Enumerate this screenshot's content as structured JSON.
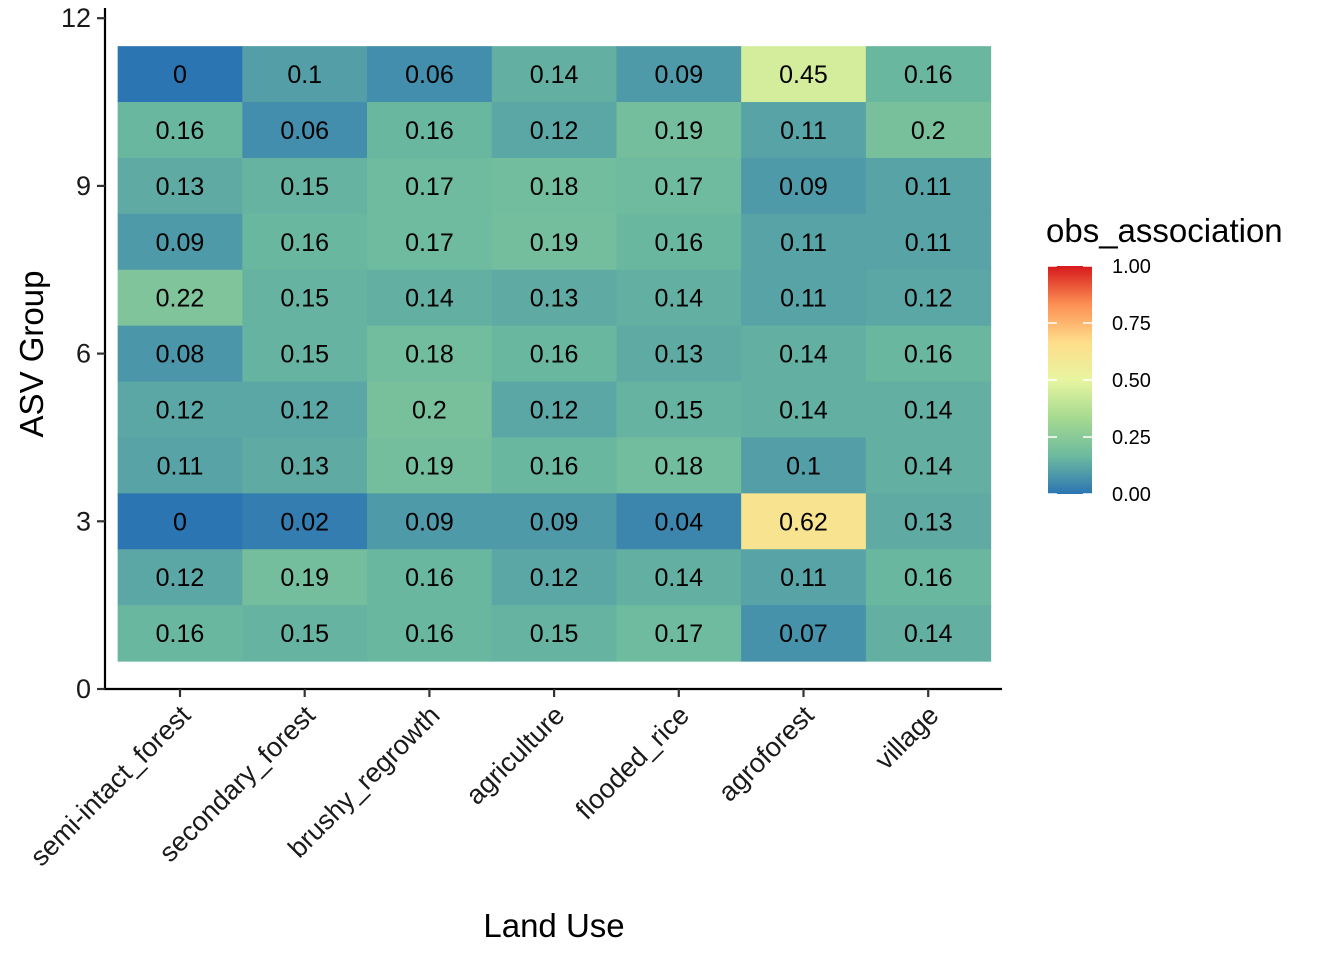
{
  "chart_data": {
    "type": "heatmap",
    "xlabel": "Land Use",
    "ylabel": "ASV Group",
    "x_categories": [
      "semi-intact_forest",
      "secondary_forest",
      "brushy_regrowth",
      "agriculture",
      "flooded_rice",
      "agroforest",
      "village"
    ],
    "y_values": [
      11,
      10,
      9,
      8,
      7,
      6,
      5,
      4,
      3,
      2,
      1
    ],
    "y_ticks": [
      0,
      3,
      6,
      9,
      12
    ],
    "y_tick_labels": [
      "0",
      "3",
      "6",
      "9",
      "12"
    ],
    "ylim": [
      0,
      12
    ],
    "values": [
      [
        0,
        0.1,
        0.06,
        0.14,
        0.09,
        0.45,
        0.16
      ],
      [
        0.16,
        0.06,
        0.16,
        0.12,
        0.19,
        0.11,
        0.2
      ],
      [
        0.13,
        0.15,
        0.17,
        0.18,
        0.17,
        0.09,
        0.11
      ],
      [
        0.09,
        0.16,
        0.17,
        0.19,
        0.16,
        0.11,
        0.11
      ],
      [
        0.22,
        0.15,
        0.14,
        0.13,
        0.14,
        0.11,
        0.12
      ],
      [
        0.08,
        0.15,
        0.18,
        0.16,
        0.13,
        0.14,
        0.16
      ],
      [
        0.12,
        0.12,
        0.2,
        0.12,
        0.15,
        0.14,
        0.14
      ],
      [
        0.11,
        0.13,
        0.19,
        0.16,
        0.18,
        0.1,
        0.14
      ],
      [
        0,
        0.02,
        0.09,
        0.09,
        0.04,
        0.62,
        0.13
      ],
      [
        0.12,
        0.19,
        0.16,
        0.12,
        0.14,
        0.11,
        0.16
      ],
      [
        0.16,
        0.15,
        0.16,
        0.15,
        0.17,
        0.07,
        0.14
      ]
    ],
    "cell_labels": [
      [
        "0",
        "0.1",
        "0.06",
        "0.14",
        "0.09",
        "0.45",
        "0.16"
      ],
      [
        "0.16",
        "0.06",
        "0.16",
        "0.12",
        "0.19",
        "0.11",
        "0.2"
      ],
      [
        "0.13",
        "0.15",
        "0.17",
        "0.18",
        "0.17",
        "0.09",
        "0.11"
      ],
      [
        "0.09",
        "0.16",
        "0.17",
        "0.19",
        "0.16",
        "0.11",
        "0.11"
      ],
      [
        "0.22",
        "0.15",
        "0.14",
        "0.13",
        "0.14",
        "0.11",
        "0.12"
      ],
      [
        "0.08",
        "0.15",
        "0.18",
        "0.16",
        "0.13",
        "0.14",
        "0.16"
      ],
      [
        "0.12",
        "0.12",
        "0.2",
        "0.12",
        "0.15",
        "0.14",
        "0.14"
      ],
      [
        "0.11",
        "0.13",
        "0.19",
        "0.16",
        "0.18",
        "0.1",
        "0.14"
      ],
      [
        "0",
        "0.02",
        "0.09",
        "0.09",
        "0.04",
        "0.62",
        "0.13"
      ],
      [
        "0.12",
        "0.19",
        "0.16",
        "0.12",
        "0.14",
        "0.11",
        "0.16"
      ],
      [
        "0.16",
        "0.15",
        "0.16",
        "0.15",
        "0.17",
        "0.07",
        "0.14"
      ]
    ],
    "color_scale": {
      "name": "Spectral (reversed)",
      "domain": [
        0,
        1
      ],
      "colors": [
        "#2C75B3",
        "#6DBA9F",
        "#A6DA91",
        "#E7F5A0",
        "#FFDD8A",
        "#FC8F53",
        "#D7191C"
      ]
    },
    "legend": {
      "title": "obs_association",
      "position": "right",
      "ticks": [
        0,
        0.25,
        0.5,
        0.75,
        1
      ],
      "tick_labels": [
        "0.00",
        "0.25",
        "0.50",
        "0.75",
        "1.00"
      ]
    },
    "grid": false
  }
}
